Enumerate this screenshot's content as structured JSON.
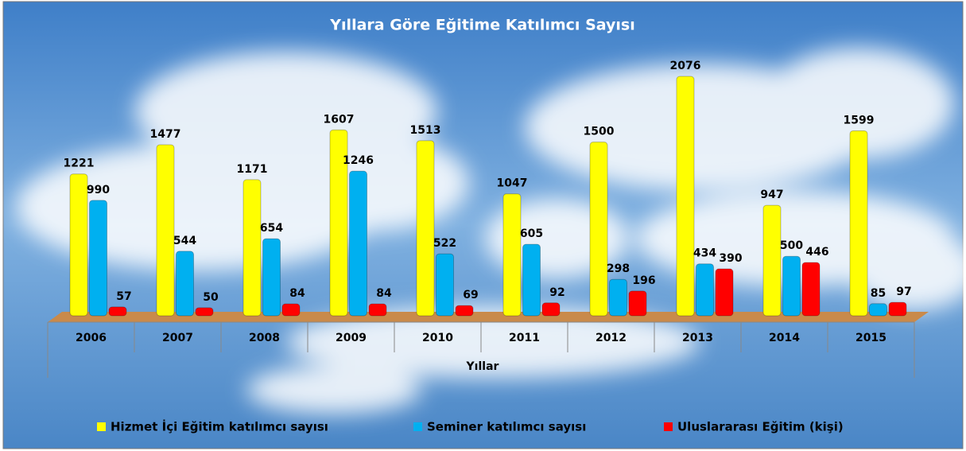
{
  "chart_data": {
    "type": "bar",
    "title": "Yıllara Göre Eğitime Katılımcı Sayısı",
    "x_label": "Yıllar",
    "categories": [
      "2006",
      "2007",
      "2008",
      "2009",
      "2010",
      "2011",
      "2012",
      "2013",
      "2014",
      "2015"
    ],
    "series": [
      {
        "name": "Hizmet İçi Eğitim katılımcı sayısı",
        "color": "#ffff00",
        "values": [
          1221,
          1477,
          1171,
          1607,
          1513,
          1047,
          1500,
          2076,
          947,
          1599
        ]
      },
      {
        "name": "Seminer katılımcı sayısı",
        "color": "#00b0f0",
        "values": [
          990,
          544,
          654,
          1246,
          522,
          605,
          298,
          434,
          500,
          85
        ]
      },
      {
        "name": "Uluslararası Eğitim (kişi)",
        "color": "#ff0000",
        "values": [
          57,
          50,
          84,
          84,
          69,
          92,
          196,
          390,
          446,
          97
        ]
      }
    ],
    "legend": "bottom"
  }
}
